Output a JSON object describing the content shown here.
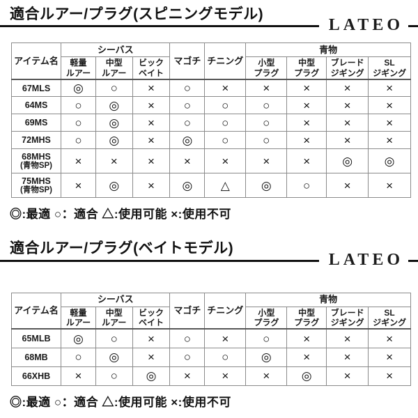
{
  "brand": "LATEO",
  "legend": "◎:最適 ○：適合 △:使用可能 ×:使用不可",
  "sections": [
    {
      "id": "spinning",
      "title": "適合ルアー/プラグ(スピニングモデル)",
      "table": {
        "item_col": "アイテム名",
        "top_header": [
          {
            "label": "シーバス",
            "colspan": 3
          },
          {
            "label": "マゴチ",
            "rowspan": 2
          },
          {
            "label": "チニング",
            "rowspan": 2
          },
          {
            "label": "青物",
            "colspan": 4
          }
        ],
        "sub_header": [
          [
            "軽量",
            "ルアー"
          ],
          [
            "中型",
            "ルアー"
          ],
          [
            "ビック",
            "ベイト"
          ],
          [
            "小型",
            "プラグ"
          ],
          [
            "中型",
            "プラグ"
          ],
          [
            "ブレード",
            "ジギング"
          ],
          [
            "SL",
            "ジギング"
          ]
        ],
        "rows": [
          {
            "item": "67MLS",
            "marks": [
              "◎",
              "○",
              "×",
              "○",
              "×",
              "×",
              "×",
              "×",
              "×"
            ]
          },
          {
            "item": "64MS",
            "marks": [
              "○",
              "◎",
              "×",
              "○",
              "○",
              "○",
              "×",
              "×",
              "×"
            ]
          },
          {
            "item": "69MS",
            "marks": [
              "○",
              "◎",
              "×",
              "○",
              "○",
              "○",
              "×",
              "×",
              "×"
            ]
          },
          {
            "item": "72MHS",
            "marks": [
              "○",
              "◎",
              "×",
              "◎",
              "○",
              "○",
              "×",
              "×",
              "×"
            ]
          },
          {
            "item": "68MHS",
            "item_sub": "(青物SP)",
            "marks": [
              "×",
              "×",
              "×",
              "×",
              "×",
              "×",
              "×",
              "◎",
              "◎"
            ]
          },
          {
            "item": "75MHS",
            "item_sub": "(青物SP)",
            "marks": [
              "×",
              "◎",
              "×",
              "◎",
              "△",
              "◎",
              "○",
              "×",
              "×"
            ]
          }
        ]
      }
    },
    {
      "id": "bait",
      "title": "適合ルアー/プラグ(ベイトモデル)",
      "table": {
        "item_col": "アイテム名",
        "top_header": [
          {
            "label": "シーバス",
            "colspan": 3
          },
          {
            "label": "マゴチ",
            "rowspan": 2
          },
          {
            "label": "チニング",
            "rowspan": 2
          },
          {
            "label": "青物",
            "colspan": 4
          }
        ],
        "sub_header": [
          [
            "軽量",
            "ルアー"
          ],
          [
            "中型",
            "ルアー"
          ],
          [
            "ビック",
            "ベイト"
          ],
          [
            "小型",
            "プラグ"
          ],
          [
            "中型",
            "プラグ"
          ],
          [
            "ブレード",
            "ジギング"
          ],
          [
            "SL",
            "ジギング"
          ]
        ],
        "rows": [
          {
            "item": "65MLB",
            "marks": [
              "◎",
              "○",
              "×",
              "○",
              "×",
              "○",
              "×",
              "×",
              "×"
            ]
          },
          {
            "item": "68MB",
            "marks": [
              "○",
              "◎",
              "×",
              "○",
              "○",
              "◎",
              "×",
              "×",
              "×"
            ]
          },
          {
            "item": "66XHB",
            "marks": [
              "×",
              "○",
              "◎",
              "×",
              "×",
              "×",
              "◎",
              "×",
              "×"
            ]
          }
        ]
      }
    }
  ]
}
